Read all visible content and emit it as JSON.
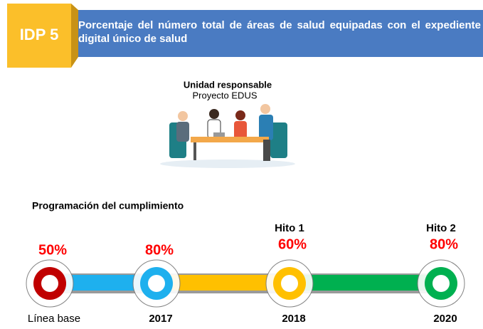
{
  "header": {
    "badge": "IDP 5",
    "title": "Porcentaje del número total de áreas de salud equipadas con el expediente digital único de salud"
  },
  "responsible": {
    "heading": "Unidad responsable",
    "name": "Proyecto EDUS"
  },
  "schedule": {
    "title": "Programación del cumplimiento",
    "milestones": [
      {
        "percent": "50%",
        "label": "Línea base",
        "color": "#c00000"
      },
      {
        "percent": "80%",
        "label": "2017",
        "color": "#1eb0ee"
      },
      {
        "hito": "Hito 1",
        "percent": "60%",
        "label": "2018",
        "color": "#ffc000"
      },
      {
        "hito": "Hito 2",
        "percent": "80%",
        "label": "2020",
        "color": "#00b050"
      }
    ]
  }
}
